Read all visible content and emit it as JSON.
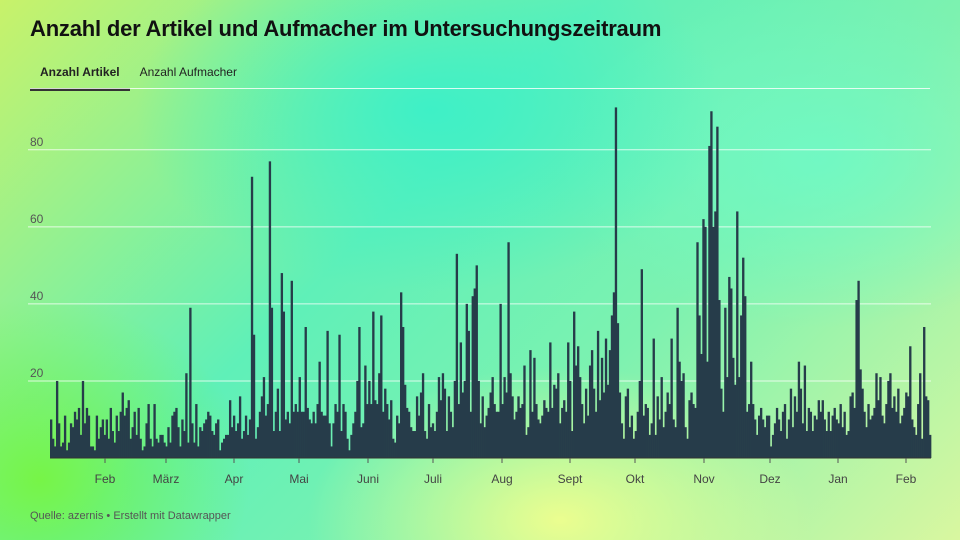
{
  "header": {
    "title": "Anzahl der Artikel und Aufmacher im Untersuchungszeitraum"
  },
  "tabs": [
    {
      "label": "Anzahl Artikel",
      "active": true
    },
    {
      "label": "Anzahl Aufmacher",
      "active": false
    }
  ],
  "footer": {
    "source": "Quelle: azernis • Erstellt mit Datawrapper"
  },
  "colors": {
    "bar": "#263c4a",
    "grid": "#ffffff",
    "tick": "#555555"
  },
  "chart_data": {
    "type": "bar",
    "ylim": [
      0,
      95
    ],
    "yticks": [
      20,
      40,
      60,
      80
    ],
    "months": [
      "Feb",
      "März",
      "Apr",
      "Mai",
      "Juni",
      "Juli",
      "Aug",
      "Sept",
      "Okt",
      "Nov",
      "Dez",
      "Jan",
      "Feb"
    ],
    "daily_values": [
      10,
      5,
      3,
      20,
      9,
      3,
      4,
      11,
      2,
      4,
      9,
      8,
      12,
      10,
      13,
      6,
      20,
      9,
      13,
      11,
      3,
      3,
      2,
      11,
      5,
      8,
      10,
      6,
      10,
      5,
      13,
      7,
      4,
      11,
      7,
      12,
      17,
      11,
      13,
      15,
      5,
      8,
      12,
      6,
      13,
      5,
      2,
      3,
      9,
      14,
      5,
      3,
      14,
      5,
      4,
      6,
      6,
      4,
      3,
      8,
      4,
      11,
      12,
      13,
      8,
      3,
      10,
      7,
      22,
      4,
      39,
      9,
      4,
      14,
      3,
      8,
      7,
      9,
      10,
      12,
      11,
      7,
      6,
      9,
      10,
      2,
      4,
      5,
      6,
      6,
      15,
      8,
      11,
      7,
      9,
      16,
      5,
      7,
      11,
      6,
      10,
      73,
      32,
      5,
      8,
      12,
      16,
      21,
      11,
      14,
      77,
      39,
      7,
      12,
      18,
      7,
      48,
      38,
      10,
      12,
      9,
      46,
      12,
      14,
      12,
      21,
      12,
      12,
      34,
      13,
      10,
      9,
      12,
      9,
      14,
      25,
      12,
      11,
      11,
      33,
      9,
      3,
      9,
      14,
      12,
      32,
      7,
      14,
      12,
      5,
      2,
      6,
      9,
      12,
      20,
      34,
      8,
      9,
      24,
      14,
      20,
      14,
      38,
      15,
      14,
      22,
      37,
      12,
      18,
      14,
      10,
      15,
      5,
      4,
      11,
      9,
      43,
      34,
      19,
      13,
      12,
      8,
      7,
      7,
      16,
      11,
      17,
      22,
      7,
      5,
      14,
      8,
      9,
      7,
      12,
      21,
      15,
      22,
      18,
      7,
      16,
      12,
      8,
      20,
      53,
      14,
      30,
      17,
      20,
      40,
      33,
      12,
      42,
      44,
      50,
      20,
      9,
      16,
      8,
      11,
      13,
      17,
      21,
      14,
      12,
      12,
      40,
      14,
      21,
      17,
      56,
      22,
      16,
      10,
      12,
      16,
      13,
      14,
      24,
      6,
      8,
      28,
      12,
      26,
      14,
      10,
      9,
      11,
      15,
      13,
      12,
      30,
      13,
      19,
      18,
      22,
      9,
      13,
      15,
      12,
      30,
      20,
      7,
      38,
      24,
      29,
      21,
      14,
      9,
      18,
      11,
      24,
      28,
      18,
      12,
      33,
      15,
      26,
      17,
      31,
      19,
      28,
      37,
      43,
      91,
      35,
      17,
      9,
      5,
      16,
      18,
      8,
      11,
      5,
      7,
      12,
      20,
      49,
      11,
      14,
      13,
      6,
      9,
      31,
      6,
      16,
      10,
      21,
      8,
      12,
      17,
      14,
      31,
      10,
      8,
      39,
      25,
      20,
      22,
      8,
      5,
      15,
      17,
      14,
      13,
      56,
      37,
      27,
      62,
      60,
      25,
      81,
      90,
      60,
      64,
      86,
      41,
      18,
      12,
      39,
      21,
      47,
      44,
      26,
      19,
      64,
      21,
      37,
      52,
      42,
      12,
      14,
      25,
      14,
      10,
      6,
      11,
      13,
      10,
      8,
      11,
      11,
      3,
      6,
      9,
      13,
      10,
      7,
      12,
      14,
      5,
      10,
      18,
      8,
      16,
      12,
      25,
      18,
      9,
      24,
      7,
      13,
      12,
      7,
      11,
      10,
      15,
      12,
      15,
      10,
      7,
      12,
      7,
      11,
      13,
      10,
      9,
      14,
      8,
      12,
      6,
      7,
      16,
      17,
      13,
      41,
      46,
      23,
      18,
      12,
      8,
      14,
      10,
      11,
      13,
      22,
      15,
      21,
      11,
      9,
      14,
      20,
      22,
      13,
      16,
      12,
      18,
      9,
      11,
      13,
      17,
      16,
      29,
      10,
      8,
      6,
      14,
      22,
      5,
      34,
      16,
      15,
      6
    ]
  }
}
